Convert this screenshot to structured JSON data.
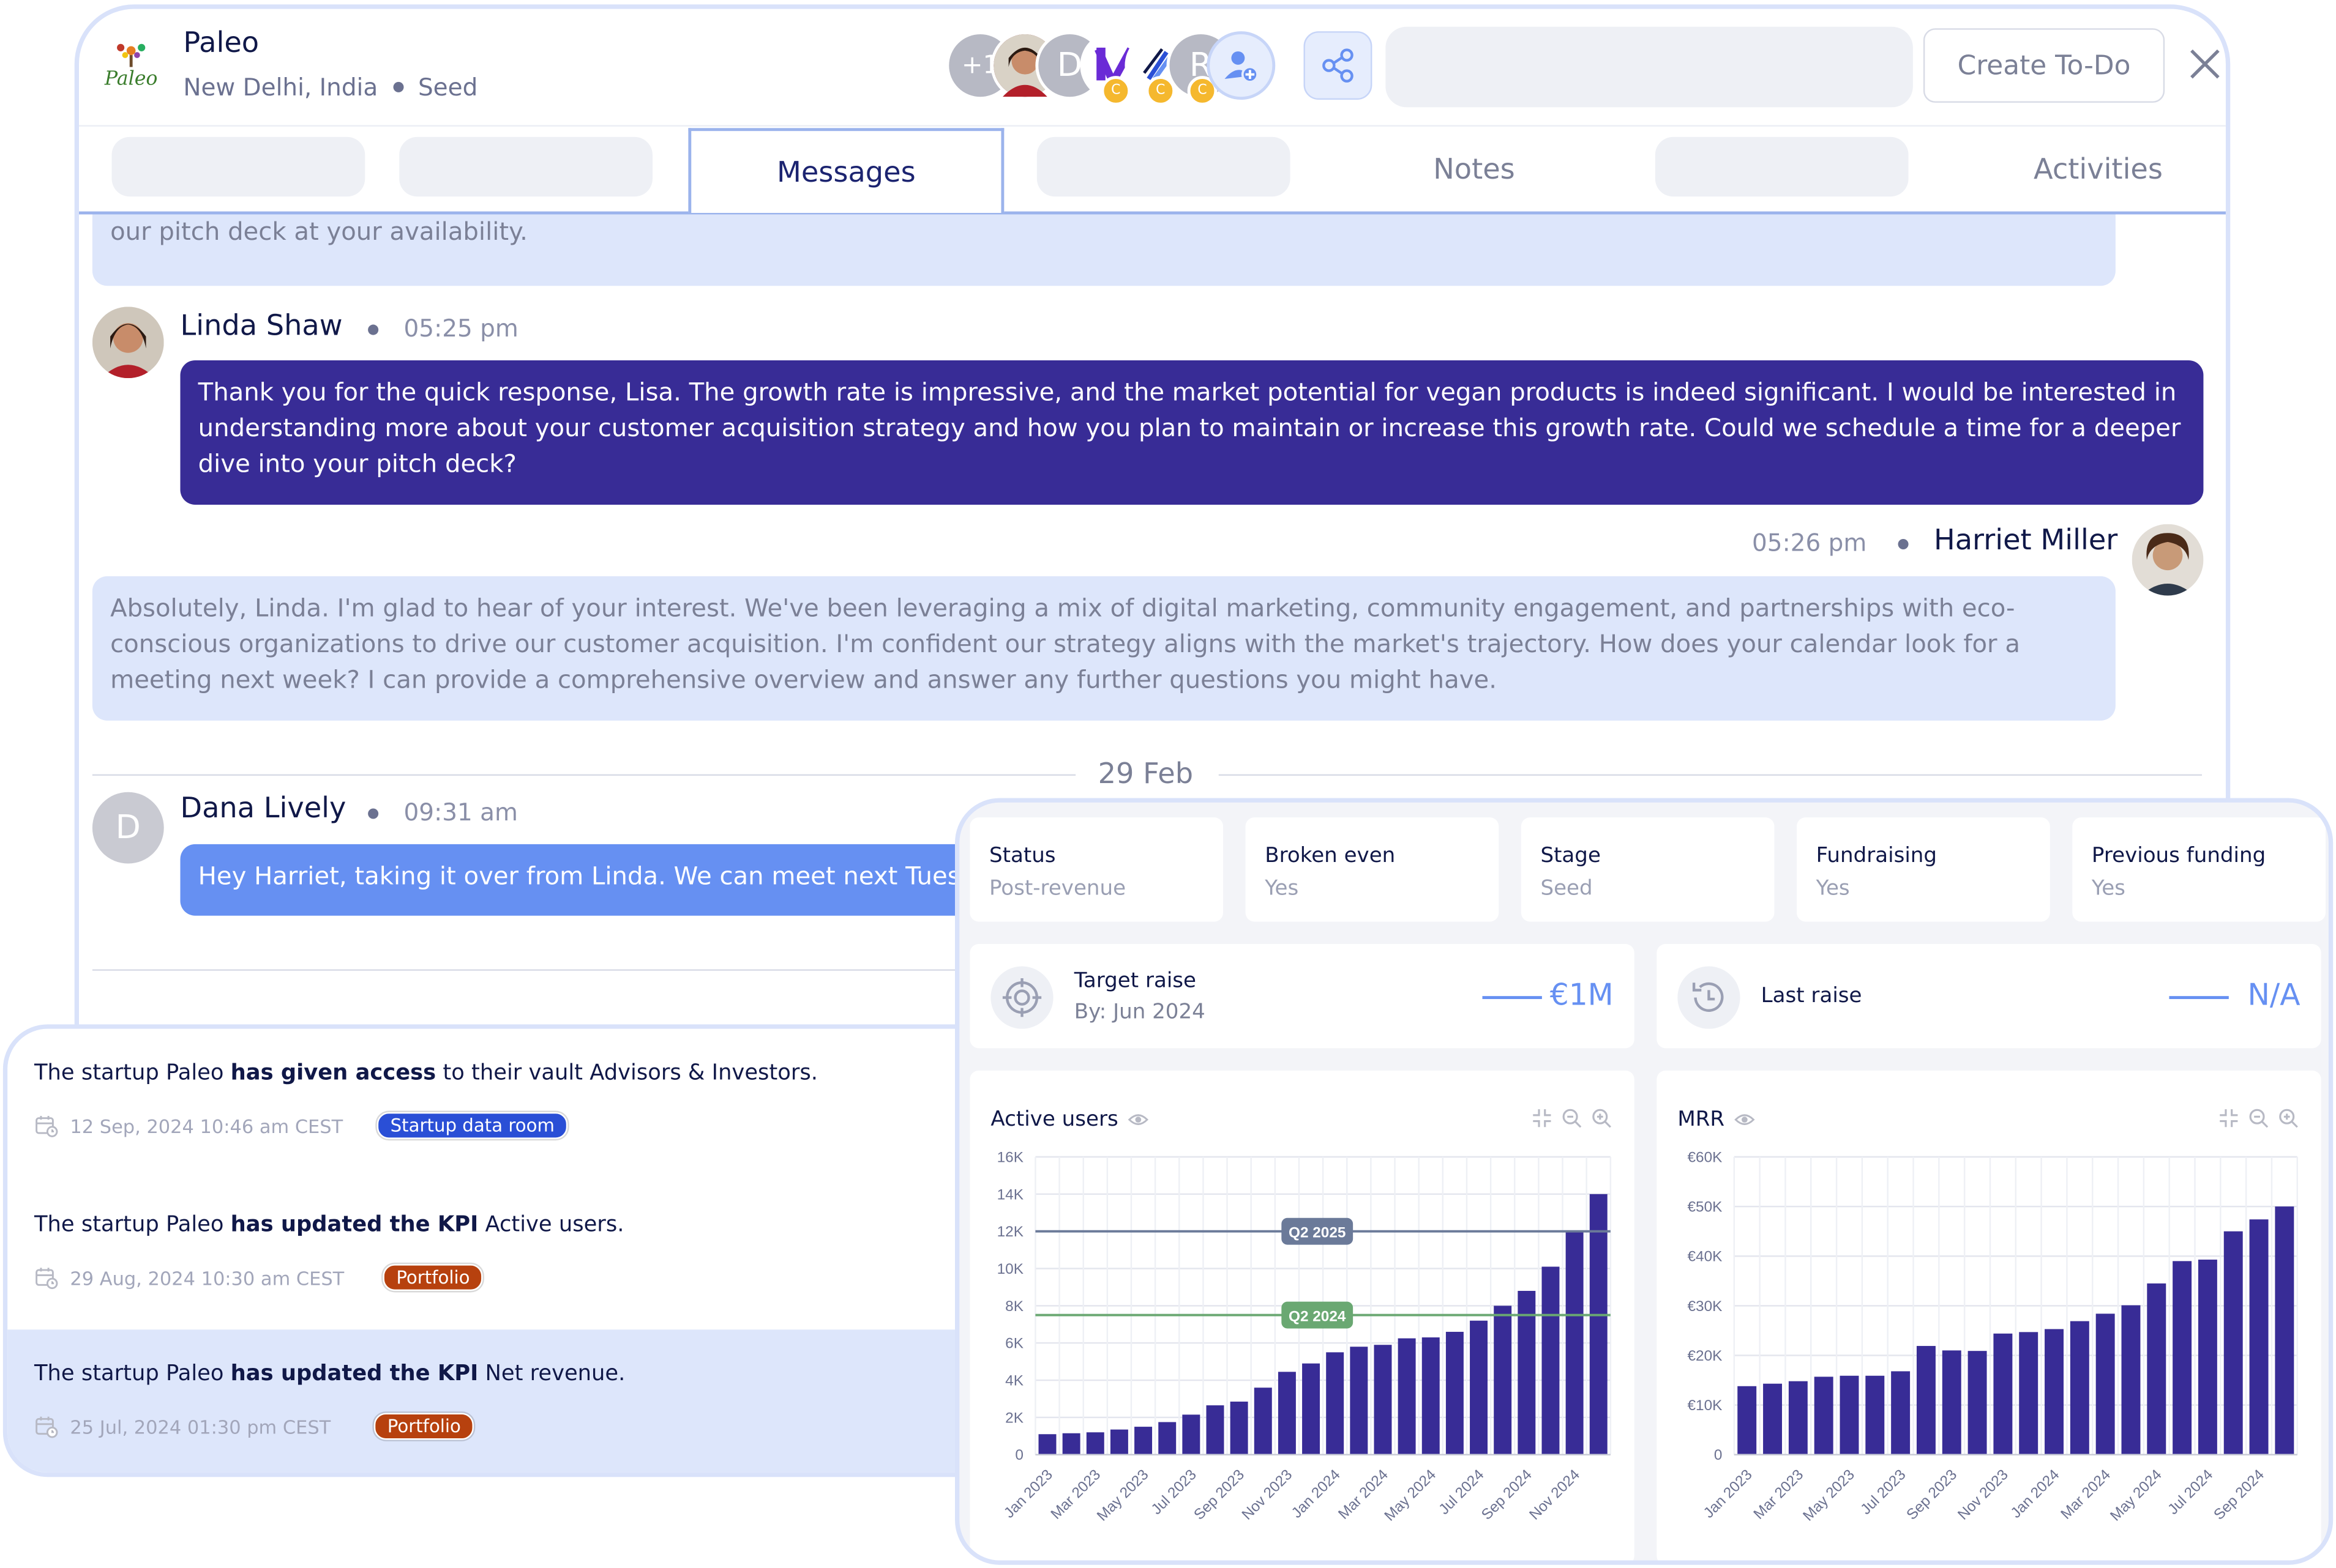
{
  "header": {
    "company": "Paleo",
    "logo_text": "Paleo",
    "location": "New Delhi, India",
    "stage": "Seed",
    "avatar_more": "+1",
    "avatar_d": "D",
    "avatar_r": "R",
    "coin_letter": "C",
    "create_todo": "Create To-Do"
  },
  "tabs": {
    "messages": "Messages",
    "notes": "Notes",
    "activities": "Activities"
  },
  "messages": {
    "m0_text": "We mainly serve vegan population within cities, which is growing at 133% per year and looking to grow to $182bn by 2030. Would be happy to walk you through our pitch deck at your availability.",
    "m1_sender": "Linda Shaw",
    "m1_time": "05:25 pm",
    "m1_text": "Thank you for the quick response, Lisa. The growth rate is impressive, and the market potential for vegan products is indeed significant. I would be interested in understanding more about your customer acquisition strategy and how you plan to maintain or increase this growth rate. Could we schedule a time for a deeper dive into your pitch deck?",
    "m2_sender": "Harriet Miller",
    "m2_time": "05:26 pm",
    "m2_text": "Absolutely, Linda. I'm glad to hear of your interest. We've been leveraging a mix of digital marketing, community engagement, and partnerships with eco-conscious organizations to drive our customer acquisition. I'm confident our strategy aligns with the market's trajectory. How does your calendar look for a meeting next week? I can provide a comprehensive overview and answer any further questions you might have.",
    "date_sep": "29 Feb",
    "m3_sender": "Dana Lively",
    "m3_initial": "D",
    "m3_time": "09:31 am",
    "m3_text": "Hey Harriet, taking it over from Linda. We can meet next Tuesday"
  },
  "activity": {
    "items": [
      {
        "pre": "The startup Paleo ",
        "bold": "has given access",
        "post": " to their vault Advisors & Investors.",
        "date": "12 Sep, 2024 10:46 am CEST",
        "badge": "Startup data room",
        "badge_color": "#2a4fd6"
      },
      {
        "pre": "The startup Paleo ",
        "bold": "has updated the KPI",
        "post": " Active users.",
        "date": "29 Aug, 2024 10:30 am CEST",
        "badge": "Portfolio",
        "badge_color": "#b7410e"
      },
      {
        "pre": "The startup Paleo ",
        "bold": "has updated the KPI",
        "post": " Net revenue.",
        "date": "25 Jul, 2024 01:30 pm CEST",
        "badge": "Portfolio",
        "badge_color": "#b7410e"
      }
    ]
  },
  "overview": {
    "stats": [
      {
        "label": "Status",
        "value": "Post-revenue"
      },
      {
        "label": "Broken even",
        "value": "Yes"
      },
      {
        "label": "Stage",
        "value": "Seed"
      },
      {
        "label": "Fundraising",
        "value": "Yes"
      },
      {
        "label": "Previous funding",
        "value": "Yes"
      }
    ],
    "target_label": "Target raise",
    "target_sub": "By: Jun 2024",
    "target_value": "€1M",
    "last_label": "Last raise",
    "last_value": "N/A"
  },
  "colors": {
    "bar": "#382c96",
    "accent": "#6690f2",
    "goal_2025": "#6b7a99",
    "goal_2024": "#6aa872"
  },
  "chart_data": [
    {
      "type": "bar",
      "title": "Active users",
      "x_tick_labels": [
        "Jan 2023",
        "Mar 2023",
        "May 2023",
        "Jul 2023",
        "Sep 2023",
        "Nov 2023",
        "Jan 2024",
        "Mar 2024",
        "May 2024",
        "Jul 2024",
        "Sep 2024",
        "Nov 2024"
      ],
      "values": [
        1100,
        1150,
        1200,
        1350,
        1500,
        1750,
        2150,
        2650,
        2850,
        3600,
        4450,
        4900,
        5500,
        5800,
        5900,
        6250,
        6300,
        6600,
        7200,
        8000,
        8800,
        10100,
        12000,
        14000
      ],
      "ylim": [
        0,
        16000
      ],
      "y_ticks": [
        "0",
        "2K",
        "4K",
        "6K",
        "8K",
        "10K",
        "12K",
        "14K",
        "16K"
      ],
      "goals": [
        {
          "label": "Q2 2025",
          "value": 12000
        },
        {
          "label": "Q2 2024",
          "value": 7500
        }
      ]
    },
    {
      "type": "bar",
      "title": "MRR",
      "x_tick_labels": [
        "Jan 2023",
        "Mar 2023",
        "May 2023",
        "Jul 2023",
        "Sep 2023",
        "Nov 2023",
        "Jan 2024",
        "Mar 2024",
        "May 2024",
        "Jul 2024",
        "Sep 2024"
      ],
      "values": [
        13800,
        14300,
        14800,
        15700,
        15900,
        15900,
        16800,
        21900,
        21000,
        20900,
        24400,
        24700,
        25300,
        26900,
        28400,
        30100,
        34500,
        39000,
        39300,
        45000,
        47400,
        50000
      ],
      "ylim": [
        0,
        60000
      ],
      "y_ticks": [
        "0",
        "€10K",
        "€20K",
        "€30K",
        "€40K",
        "€50K",
        "€60K"
      ]
    }
  ]
}
